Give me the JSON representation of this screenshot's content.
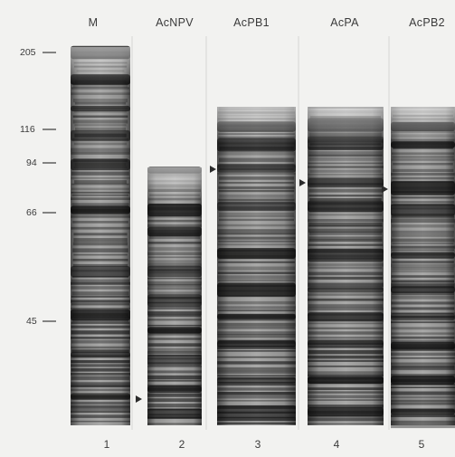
{
  "lanes": [
    {
      "label": "M",
      "number": "1"
    },
    {
      "label": "AcNPV",
      "number": "2"
    },
    {
      "label": "AcPB1",
      "number": "3"
    },
    {
      "label": "AcPA",
      "number": "4"
    },
    {
      "label": "AcPB2",
      "number": "5"
    }
  ],
  "markers": [
    {
      "label": "205",
      "kda": 205
    },
    {
      "label": "116",
      "kda": 116
    },
    {
      "label": "94",
      "kda": 94
    },
    {
      "label": "66",
      "kda": 66
    },
    {
      "label": "45",
      "kda": 45
    }
  ],
  "colors": {
    "background": "#f2f2f0",
    "band": "#1a1a1a",
    "smear": "#6e6e6e",
    "text": "#3a3a3a"
  }
}
